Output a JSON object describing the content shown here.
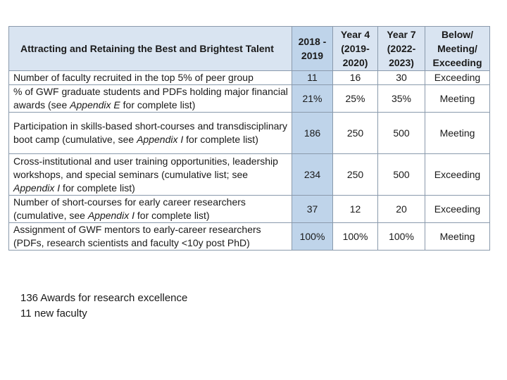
{
  "table": {
    "title": "Attracting and Retaining the Best and Brightest Talent",
    "col_2018": "2018 - 2019",
    "col_year4": "Year 4 (2019-2020)",
    "col_year7": "Year 7 (2022-2023)",
    "col_status": "Below/ Meeting/ Exceeding",
    "rows": [
      {
        "metric_pre": "Number of faculty recruited in the top 5% of peer group",
        "metric_em": "",
        "metric_post": "",
        "v2018": "11",
        "year4": "16",
        "year7": "30",
        "status": "Exceeding"
      },
      {
        "metric_pre": "% of GWF graduate students and PDFs holding major financial awards (see ",
        "metric_em": "Appendix E",
        "metric_post": " for complete list)",
        "v2018": "21%",
        "year4": "25%",
        "year7": "35%",
        "status": "Meeting"
      },
      {
        "metric_pre": "Participation in skills-based short-courses and transdisciplinary boot camp (cumulative, see ",
        "metric_em": "Appendix I",
        "metric_post": " for complete list)",
        "v2018": "186",
        "year4": "250",
        "year7": "500",
        "status": "Meeting"
      },
      {
        "metric_pre": "Cross-institutional and user training opportunities, leadership workshops, and special seminars (cumulative list; see ",
        "metric_em": "Appendix I",
        "metric_post": " for complete list)",
        "v2018": "234",
        "year4": "250",
        "year7": "500",
        "status": "Exceeding"
      },
      {
        "metric_pre": "Number of short-courses for early career researchers (cumulative, see ",
        "metric_em": "Appendix I",
        "metric_post": " for complete list)",
        "v2018": "37",
        "year4": "12",
        "year7": "20",
        "status": "Exceeding"
      },
      {
        "metric_pre": "Assignment of GWF mentors to early-career researchers (PDFs, research scientists and faculty <10y post PhD)",
        "metric_em": "",
        "metric_post": "",
        "v2018": "100%",
        "year4": "100%",
        "year7": "100%",
        "status": "Meeting"
      }
    ]
  },
  "notes": [
    "136 Awards for research excellence",
    "11 new faculty"
  ]
}
